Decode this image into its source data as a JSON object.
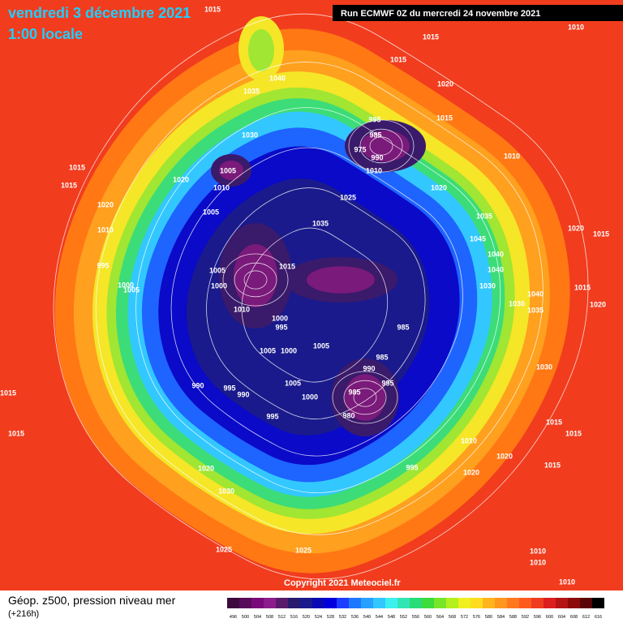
{
  "header": {
    "date": "vendredi 3 décembre 2021",
    "time": "1:00 locale",
    "run": "Run ECMWF 0Z du mercredi 24 novembre 2021"
  },
  "copyright": "Copyright 2021 Meteociel.fr",
  "footer": {
    "title": "Géop. z500, pression niveau mer",
    "lead": "(+216h)"
  },
  "isobar_labels": [
    "1015",
    "1010",
    "1015",
    "1015",
    "1040",
    "1035",
    "1020",
    "995",
    "1015",
    "985",
    "1030",
    "975",
    "990",
    "1010",
    "1015",
    "1005",
    "1010",
    "1020",
    "1015",
    "1010",
    "1020",
    "1025",
    "1020",
    "1005",
    "1035",
    "1035",
    "1010",
    "1020",
    "1045",
    "1015",
    "1040",
    "995",
    "1015",
    "1005",
    "1040",
    "1000",
    "1005",
    "1000",
    "1030",
    "1015",
    "1040",
    "1030",
    "1035",
    "1020",
    "1010",
    "1000",
    "995",
    "985",
    "1005",
    "1005",
    "1000",
    "985",
    "990",
    "1030",
    "995",
    "990",
    "1005",
    "995",
    "990",
    "985",
    "1015",
    "1000",
    "980",
    "995",
    "1015",
    "1015",
    "1015",
    "1010",
    "1020",
    "995",
    "1020",
    "1020",
    "1015",
    "1030",
    "1025",
    "1025",
    "1010",
    "1010",
    "1010"
  ],
  "legend": {
    "values": [
      496,
      500,
      504,
      508,
      512,
      516,
      520,
      524,
      528,
      532,
      536,
      540,
      544,
      548,
      552,
      556,
      560,
      564,
      568,
      572,
      576,
      580,
      584,
      588,
      592,
      596,
      600,
      604,
      608,
      612,
      616
    ],
    "colors": [
      "#3c0a3c",
      "#5a0a5a",
      "#7a0a7a",
      "#8c1c8c",
      "#5a1a6a",
      "#2a1a6e",
      "#1a1a8c",
      "#0a0ab4",
      "#0000dc",
      "#1e3cff",
      "#1e78ff",
      "#28a0ff",
      "#32c8ff",
      "#3cf0f0",
      "#32e6b4",
      "#28dc78",
      "#3cdc3c",
      "#78e628",
      "#b4f01e",
      "#f0f01e",
      "#ffdc1e",
      "#ffb41e",
      "#ff961e",
      "#ff781e",
      "#ff5a1e",
      "#f03c1e",
      "#dc1e1e",
      "#b41414",
      "#8c0a0a",
      "#5a0505",
      "#000000"
    ]
  }
}
